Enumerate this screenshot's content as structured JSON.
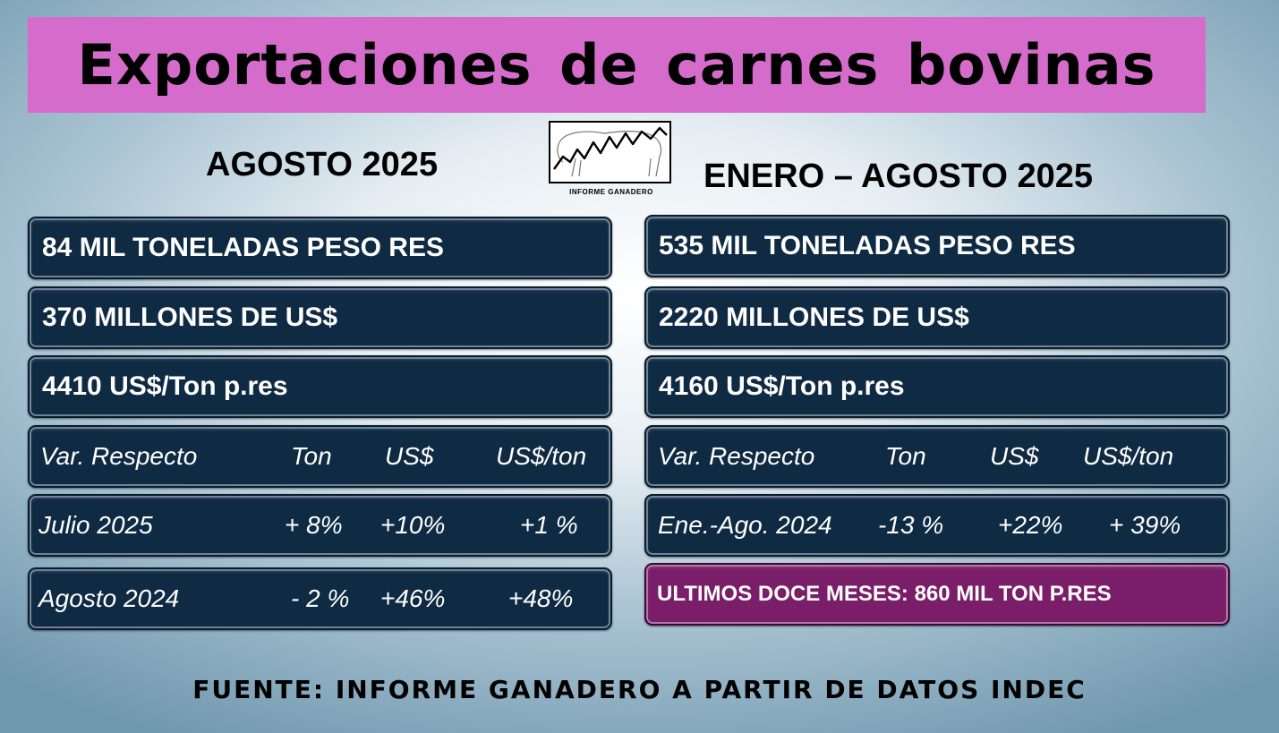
{
  "title": "Exportaciones de carnes bovinas",
  "logo_caption": "INFORME GANADERO",
  "left": {
    "heading": "AGOSTO 2025",
    "volume": "84 MIL TONELADAS PESO RES",
    "value": "370 MILLONES DE US$",
    "price": "4410 US$/Ton p.res",
    "header": [
      "Var. Respecto",
      "Ton",
      "US$",
      "US$/ton"
    ],
    "rows": [
      [
        "Julio 2025",
        "+ 8%",
        "+10%",
        "+1 %"
      ],
      [
        "Agosto 2024",
        "- 2 %",
        "+46%",
        "+48%"
      ]
    ]
  },
  "right": {
    "heading": "ENERO – AGOSTO  2025",
    "volume": "535  MIL TONELADAS PESO RES",
    "value": "2220 MILLONES DE US$",
    "price": "4160 US$/Ton p.res",
    "header": [
      "Var. Respecto",
      "Ton",
      "US$",
      "US$/ton"
    ],
    "rows": [
      [
        "Ene.-Ago. 2024",
        "-13 %",
        "+22%",
        "+  39%"
      ]
    ],
    "last12": "ULTIMOS DOCE MESES: 860 MIL TON P.RES"
  },
  "source": "FUENTE: INFORME GANADERO A PARTIR DE DATOS INDEC",
  "colors": {
    "banner": "#d56bcb",
    "panel": "#0f2a43",
    "highlight_panel": "#7a1e6a"
  }
}
